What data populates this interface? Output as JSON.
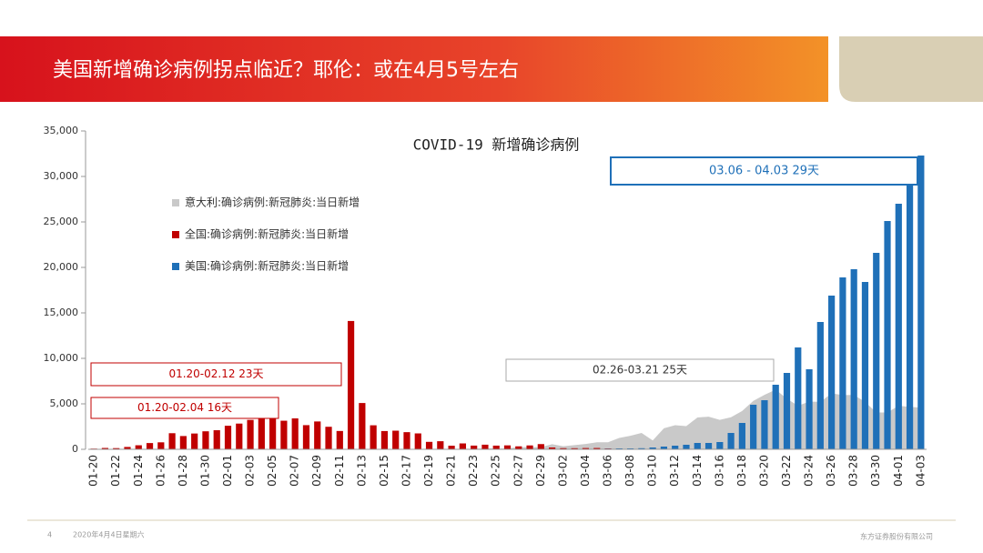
{
  "header": {
    "title": "美国新增确诊病例拐点临近？耶伦：或在4月5号左右"
  },
  "chart_data": {
    "type": "bar",
    "title": "COVID-19  新增确诊病例",
    "categories": [
      "01-20",
      null,
      "01-22",
      null,
      "01-24",
      null,
      "01-26",
      null,
      "01-28",
      null,
      "01-30",
      null,
      "02-01",
      null,
      "02-03",
      null,
      "02-05",
      null,
      "02-07",
      null,
      "02-09",
      null,
      "02-11",
      null,
      "02-13",
      null,
      "02-15",
      null,
      "02-17",
      null,
      "02-19",
      null,
      "02-21",
      null,
      "02-23",
      null,
      "02-25",
      null,
      "02-27",
      null,
      "02-29",
      null,
      "03-02",
      null,
      "03-04",
      null,
      "03-06",
      null,
      "03-08",
      null,
      "03-10",
      null,
      "03-12",
      null,
      "03-14",
      null,
      "03-16",
      null,
      "03-18",
      null,
      "03-20",
      null,
      "03-22",
      null,
      "03-24",
      null,
      "03-26",
      null,
      "03-28",
      null,
      "03-30",
      null,
      "04-01",
      null,
      "04-03"
    ],
    "series": [
      {
        "name": "意大利:确诊病例:新冠肺炎:当日新增",
        "color": "#c9c9c9",
        "style": "area",
        "values": [
          null,
          null,
          null,
          null,
          null,
          null,
          null,
          null,
          null,
          null,
          null,
          null,
          null,
          null,
          null,
          null,
          null,
          null,
          null,
          null,
          null,
          null,
          null,
          null,
          null,
          null,
          null,
          null,
          null,
          null,
          null,
          null,
          14,
          62,
          53,
          97,
          93,
          78,
          250,
          238,
          240,
          566,
          342,
          466,
          587,
          769,
          778,
          1247,
          1492,
          1797,
          977,
          2313,
          2651,
          2547,
          3497,
          3590,
          3233,
          3526,
          4207,
          5322,
          5986,
          6557,
          5560,
          4789,
          5249,
          5210,
          6153,
          5959,
          5974,
          5217,
          4050,
          4053,
          4782,
          4668,
          4585
        ]
      },
      {
        "name": "全国:确诊病例:新冠肺炎:当日新增",
        "color": "#c00000",
        "style": "bar",
        "values": [
          77,
          149,
          131,
          259,
          444,
          688,
          769,
          1771,
          1459,
          1737,
          1981,
          2099,
          2590,
          2829,
          3235,
          3887,
          3694,
          3143,
          3399,
          2656,
          3062,
          2478,
          2015,
          14108,
          5090,
          2641,
          2009,
          2048,
          1886,
          1749,
          820,
          889,
          397,
          648,
          409,
          508,
          406,
          433,
          327,
          427,
          573,
          202,
          125,
          119,
          139,
          143,
          99,
          44,
          40,
          19,
          24,
          15,
          8,
          11,
          20,
          16,
          21,
          13,
          34,
          39,
          41,
          46,
          39,
          78,
          47,
          67,
          55,
          54,
          45,
          31,
          48,
          36,
          35,
          31,
          19
        ]
      },
      {
        "name": "美国:确诊病例:新冠肺炎:当日新增",
        "color": "#1f70b8",
        "style": "bar",
        "values": [
          null,
          null,
          null,
          null,
          null,
          null,
          null,
          null,
          null,
          null,
          null,
          null,
          null,
          null,
          null,
          null,
          null,
          null,
          null,
          null,
          null,
          null,
          null,
          null,
          null,
          null,
          null,
          null,
          null,
          null,
          null,
          null,
          null,
          null,
          null,
          null,
          null,
          null,
          null,
          null,
          null,
          null,
          20,
          20,
          20,
          40,
          70,
          100,
          100,
          120,
          200,
          300,
          400,
          500,
          700,
          700,
          800,
          1800,
          2900,
          4900,
          5400,
          7100,
          8400,
          11200,
          8800,
          14000,
          16900,
          18900,
          19800,
          18400,
          21600,
          25100,
          27000,
          29000,
          32300
        ]
      }
    ],
    "ylim": [
      0,
      35000
    ],
    "yticks": [
      0,
      {
        "value": 5000,
        "label": "5,000"
      },
      {
        "value": 10000,
        "label": "10,000"
      },
      {
        "value": 15000,
        "label": "15,000"
      },
      {
        "value": 20000,
        "label": "20,000"
      },
      {
        "value": 25000,
        "label": "25,000"
      },
      {
        "value": 30000,
        "label": "30,000"
      },
      {
        "value": 35000,
        "label": "35,000"
      }
    ],
    "annotations": [
      "01.20-02.12  23天",
      "01.20-02.04  16天",
      "02.26-03.21  25天",
      "03.06 - 04.03  29天"
    ]
  },
  "footer": {
    "page": "4",
    "date": "2020年4月4日星期六",
    "company": "东方证券股份有限公司"
  }
}
